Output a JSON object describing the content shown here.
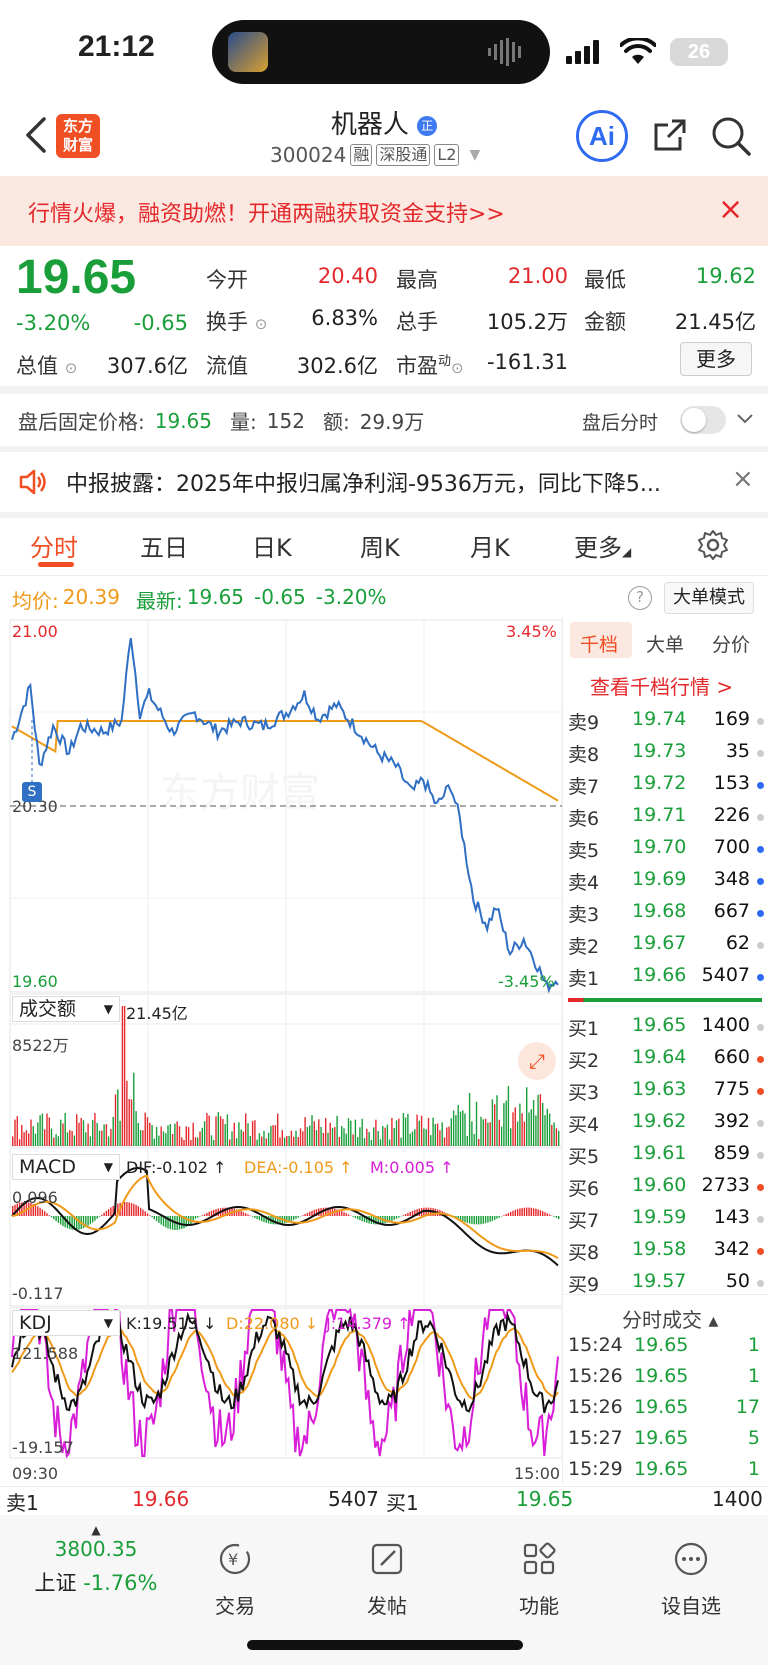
{
  "status_bar": {
    "time": "21:12",
    "battery": "26"
  },
  "header": {
    "back_icon": "chevron-left-icon",
    "logo_text_line1": "东方",
    "logo_text_line2": "财富",
    "stock_name": "机器人",
    "stock_badge": "正",
    "stock_code": "300024",
    "tags": [
      "融",
      "深股通",
      "L2"
    ],
    "ai_label": "Ai"
  },
  "banner": {
    "text": "行情火爆，融资助燃！开通两融获取资金支持>>",
    "close": "×"
  },
  "quote": {
    "price": "19.65",
    "change_pct": "-3.20%",
    "change": "-0.65",
    "fields": {
      "open_label": "今开",
      "open": "20.40",
      "high_label": "最高",
      "high": "21.00",
      "low_label": "最低",
      "low": "19.62",
      "turnover_label": "换手",
      "turnover": "6.83%",
      "volume_label": "总手",
      "volume": "105.2万",
      "amount_label": "金额",
      "amount": "21.45亿",
      "mktcap_label": "总值",
      "mktcap": "307.6亿",
      "float_label": "流值",
      "float": "302.6亿",
      "pe_label": "市盈",
      "pe_sup": "动",
      "pe": "-161.31"
    },
    "more_label": "更多"
  },
  "after_hours": {
    "label": "盘后固定价格:",
    "price": "19.65",
    "vol_label": "量:",
    "vol": "152",
    "amt_label": "额:",
    "amt": "29.9万",
    "toggle_label": "盘后分时"
  },
  "notice": {
    "text": "中报披露：2025年中报归属净利润-9536万元，同比下降5..."
  },
  "tabs": [
    "分时",
    "五日",
    "日K",
    "周K",
    "月K",
    "更多"
  ],
  "info_line": {
    "avg_label": "均价:",
    "avg": "20.39",
    "latest_label": "最新:",
    "latest": "19.65",
    "chg": "-0.65",
    "pct": "-3.20%",
    "help": "?",
    "big_order_mode": "大单模式"
  },
  "chart": {
    "price_top": "21.00",
    "price_bottom": "19.60",
    "pct_top": "3.45%",
    "pct_bottom": "-3.45%",
    "ref_price": "20.30",
    "marker": "S",
    "watermark": "东方财富",
    "volume_selector": "成交额",
    "volume_total": "21.45亿",
    "volume_max": "8522万",
    "macd_selector": "MACD",
    "macd_dif": "DIF:-0.102 ↑",
    "macd_dea": "DEA:-0.105 ↑",
    "macd_m": "M:0.005 ↑",
    "macd_top": "0.096",
    "macd_bottom": "-0.117",
    "kdj_selector": "KDJ",
    "kdj_k": "K:19.513 ↓",
    "kdj_d": "D:22.080 ↓",
    "kdj_j": "J:14.379 ↑",
    "kdj_top": "121.588",
    "kdj_bottom": "-19.157",
    "time_start": "09:30",
    "time_end": "15:00"
  },
  "colors": {
    "up": "#e4282b",
    "down": "#1a9e3a",
    "avg": "#f09a1a",
    "price_line": "#2f6fc4",
    "accent": "#f04e23"
  },
  "order_book": {
    "tabs": [
      "千档",
      "大单",
      "分价"
    ],
    "view_link": "查看千档行情 >",
    "asks": [
      {
        "label": "卖9",
        "price": "19.74",
        "vol": "169",
        "dot": "#cccccc"
      },
      {
        "label": "卖8",
        "price": "19.73",
        "vol": "35",
        "dot": "#cccccc"
      },
      {
        "label": "卖7",
        "price": "19.72",
        "vol": "153",
        "dot": "#2e6bf0"
      },
      {
        "label": "卖6",
        "price": "19.71",
        "vol": "226",
        "dot": "#cccccc"
      },
      {
        "label": "卖5",
        "price": "19.70",
        "vol": "700",
        "dot": "#2e6bf0"
      },
      {
        "label": "卖4",
        "price": "19.69",
        "vol": "348",
        "dot": "#2e6bf0"
      },
      {
        "label": "卖3",
        "price": "19.68",
        "vol": "667",
        "dot": "#2e6bf0"
      },
      {
        "label": "卖2",
        "price": "19.67",
        "vol": "62",
        "dot": "#cccccc"
      },
      {
        "label": "卖1",
        "price": "19.66",
        "vol": "5407",
        "dot": "#2e6bf0"
      }
    ],
    "bids": [
      {
        "label": "买1",
        "price": "19.65",
        "vol": "1400",
        "dot": "#cccccc"
      },
      {
        "label": "买2",
        "price": "19.64",
        "vol": "660",
        "dot": "#f04e23"
      },
      {
        "label": "买3",
        "price": "19.63",
        "vol": "775",
        "dot": "#f04e23"
      },
      {
        "label": "买4",
        "price": "19.62",
        "vol": "392",
        "dot": "#cccccc"
      },
      {
        "label": "买5",
        "price": "19.61",
        "vol": "859",
        "dot": "#cccccc"
      },
      {
        "label": "买6",
        "price": "19.60",
        "vol": "2733",
        "dot": "#f04e23"
      },
      {
        "label": "买7",
        "price": "19.59",
        "vol": "143",
        "dot": "#cccccc"
      },
      {
        "label": "买8",
        "price": "19.58",
        "vol": "342",
        "dot": "#f04e23"
      },
      {
        "label": "买9",
        "price": "19.57",
        "vol": "50",
        "dot": "#cccccc"
      }
    ],
    "ticks_title": "分时成交 ▴",
    "ticks": [
      {
        "time": "15:24",
        "price": "19.65",
        "vol": "1"
      },
      {
        "time": "15:26",
        "price": "19.65",
        "vol": "1"
      },
      {
        "time": "15:26",
        "price": "19.65",
        "vol": "17"
      },
      {
        "time": "15:27",
        "price": "19.65",
        "vol": "5"
      },
      {
        "time": "15:29",
        "price": "19.65",
        "vol": "1"
      }
    ]
  },
  "bottom_bar": {
    "ask_label": "卖1",
    "ask_price": "19.66",
    "ask_vol": "5407",
    "bid_label": "买1",
    "bid_price": "19.65",
    "bid_vol": "1400"
  },
  "nav": {
    "index_value": "3800.35",
    "index_name": "上证",
    "index_pct": "-1.76%",
    "items": [
      "交易",
      "发帖",
      "功能",
      "设自选"
    ]
  }
}
